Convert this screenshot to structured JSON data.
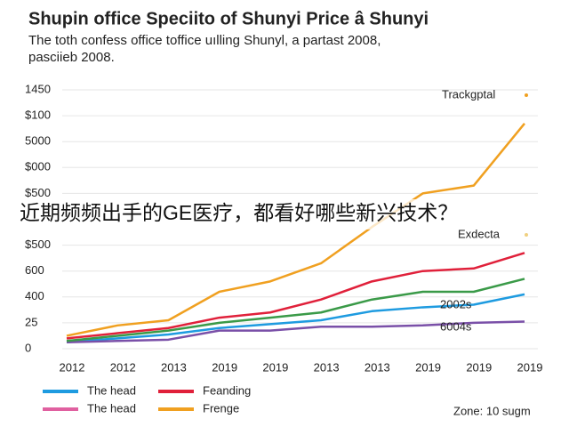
{
  "chart_data": {
    "type": "line",
    "title": "Shupin office Speciito of Shunyi Price â Shunyi",
    "subtitle": [
      "The toth confess office toffice uılling Shunyl, a partast 2008,",
      "pasciieb 2008."
    ],
    "banner": "近期频频出手的GE医疗，都看好哪些新兴技术？",
    "categories": [
      "2012",
      "2012",
      "2013",
      "2019",
      "2019",
      "2013",
      "2013",
      "2019",
      "2019",
      "2019"
    ],
    "ylim": [
      0,
      10
    ],
    "yticks": [
      0,
      {
        "value": 1,
        "label": "25"
      },
      {
        "value": 2,
        "label": "400"
      },
      {
        "value": 3,
        "label": "600"
      },
      {
        "value": 4,
        "label": "$500"
      },
      {
        "value": 6,
        "label": "$500"
      },
      {
        "value": 7,
        "label": "$000"
      },
      {
        "value": 8,
        "label": "5000"
      },
      {
        "value": 9,
        "label": "$100"
      },
      {
        "value": 10,
        "label": "1450"
      }
    ],
    "grid": true,
    "series": [
      {
        "name": "The head",
        "color": "#1e9be0",
        "values": [
          0.25,
          0.4,
          0.55,
          0.8,
          0.95,
          1.1,
          1.45,
          1.6,
          1.7,
          2.1
        ]
      },
      {
        "name": "Feanding",
        "color": "#e0203a",
        "values": [
          0.4,
          0.6,
          0.8,
          1.2,
          1.4,
          1.9,
          2.6,
          3.0,
          3.1,
          3.7
        ]
      },
      {
        "name": "The head",
        "color": "#7a50a8",
        "legend_color": "#e060a0",
        "values": [
          0.25,
          0.3,
          0.35,
          0.7,
          0.7,
          0.85,
          0.85,
          0.9,
          1.0,
          1.05
        ]
      },
      {
        "name": "Frenge",
        "color": "#f0a020",
        "values": [
          0.5,
          0.9,
          1.1,
          2.2,
          2.6,
          3.3,
          4.7,
          6.0,
          6.3,
          8.7
        ]
      },
      {
        "name": null,
        "color": "#3a9a48",
        "values": [
          0.3,
          0.5,
          0.7,
          1.0,
          1.2,
          1.4,
          1.9,
          2.2,
          2.2,
          2.7
        ]
      }
    ],
    "annotations": [
      "Trackgptal",
      "Exdecta",
      "2002s",
      "6004s"
    ],
    "footnote": "Zone: 10 sugm"
  }
}
